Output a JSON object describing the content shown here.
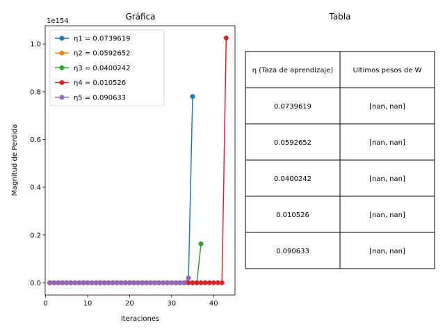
{
  "chart_data": {
    "type": "line",
    "title": "Gráfica",
    "xlabel": "Iteraciones",
    "ylabel": "Magnitud de Perdida",
    "offset_label": "1e154",
    "xlim": [
      -0.1,
      45.1
    ],
    "ylim": [
      -0.0513,
      1.0763
    ],
    "xticks": [
      0,
      10,
      20,
      30,
      40
    ],
    "yticks": [
      0.0,
      0.2,
      0.4,
      0.6,
      0.8,
      1.0
    ],
    "ytick_labels": [
      "0.0",
      "0.2",
      "0.4",
      "0.6",
      "0.8",
      "1.0"
    ],
    "legend_position": "upper-left",
    "series": [
      {
        "name": "η1 = 0.0739619",
        "color": "#1f77b4",
        "x_start": 1,
        "values": [
          0,
          0,
          0,
          0,
          0,
          0,
          0,
          0,
          0,
          0,
          0,
          0,
          0,
          0,
          0,
          0,
          0,
          0,
          0,
          0,
          0,
          0,
          0,
          0,
          0,
          0,
          0,
          0,
          0,
          0,
          0,
          0,
          0,
          0,
          0.78
        ]
      },
      {
        "name": "η2 = 0.0592652",
        "color": "#ff7f0e",
        "x_start": 1,
        "values": [
          0,
          0,
          0,
          0,
          0,
          0,
          0,
          0,
          0,
          0,
          0,
          0,
          0,
          0,
          0,
          0,
          0,
          0,
          0,
          0,
          0,
          0,
          0,
          0,
          0,
          0,
          0,
          0,
          0,
          0,
          0,
          0,
          0,
          0,
          0,
          0
        ]
      },
      {
        "name": "η3 = 0.0400242",
        "color": "#2ca02c",
        "x_start": 1,
        "values": [
          0,
          0,
          0,
          0,
          0,
          0,
          0,
          0,
          0,
          0,
          0,
          0,
          0,
          0,
          0,
          0,
          0,
          0,
          0,
          0,
          0,
          0,
          0,
          0,
          0,
          0,
          0,
          0,
          0,
          0,
          0,
          0,
          0,
          0,
          0,
          0,
          0.163
        ]
      },
      {
        "name": "η4 = 0.010526",
        "color": "#d62728",
        "x_start": 1,
        "values": [
          0,
          0,
          0,
          0,
          0,
          0,
          0,
          0,
          0,
          0,
          0,
          0,
          0,
          0,
          0,
          0,
          0,
          0,
          0,
          0,
          0,
          0,
          0,
          0,
          0,
          0,
          0,
          0,
          0,
          0,
          0,
          0,
          0,
          0,
          0,
          0,
          0,
          0,
          0,
          0,
          0,
          0,
          1.025
        ]
      },
      {
        "name": "η5 = 0.090633",
        "color": "#9467bd",
        "x_start": 1,
        "values": [
          0,
          0,
          0,
          0,
          0,
          0,
          0,
          0,
          0,
          0,
          0,
          0,
          0,
          0,
          0,
          0,
          0,
          0,
          0,
          0,
          0,
          0,
          0,
          0,
          0,
          0,
          0,
          0,
          0,
          0,
          0,
          0,
          0,
          0.02
        ]
      }
    ]
  },
  "table": {
    "title": "Tabla",
    "headers": [
      "η (Taza de aprendizaje)",
      "Ultimos pesos de W"
    ],
    "rows": [
      [
        "0.0739619",
        "[nan, nan]"
      ],
      [
        "0.0592652",
        "[nan, nan]"
      ],
      [
        "0.0400242",
        "[nan, nan]"
      ],
      [
        "0.010526",
        "[nan, nan]"
      ],
      [
        "0.090633",
        "[nan, nan]"
      ]
    ]
  }
}
